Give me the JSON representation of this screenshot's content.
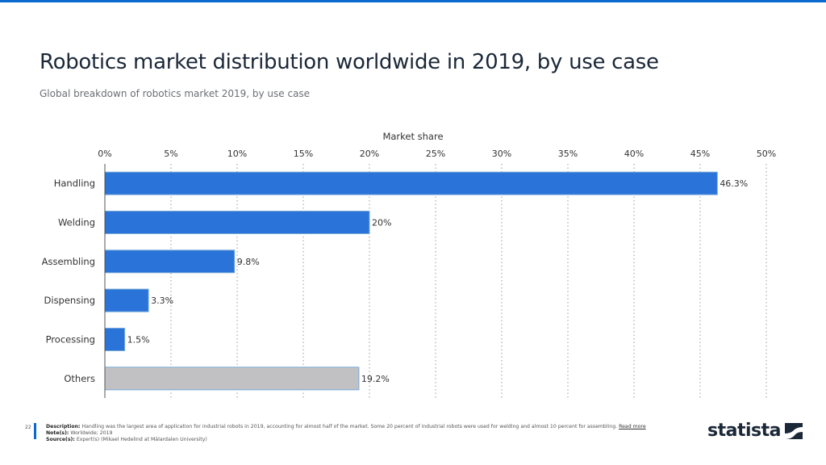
{
  "header": {
    "title": "Robotics market distribution worldwide in 2019, by use case",
    "subtitle": "Global breakdown of robotics market 2019, by use case"
  },
  "colors": {
    "accent": "#0a6ad0",
    "bar": "#2a73d9",
    "bar_other": "#c1c1c3",
    "bar_border": "#7aaad8",
    "title": "#1b2838"
  },
  "chart_data": {
    "type": "bar",
    "orientation": "horizontal",
    "title": "Robotics market distribution worldwide in 2019, by use case",
    "subtitle": "Global breakdown of robotics market 2019, by use case",
    "xlabel": "Market share",
    "ylabel": "",
    "xlim": [
      0,
      50
    ],
    "x_ticks": [
      "0%",
      "5%",
      "10%",
      "15%",
      "20%",
      "25%",
      "30%",
      "35%",
      "40%",
      "45%",
      "50%"
    ],
    "x_tick_values": [
      0,
      5,
      10,
      15,
      20,
      25,
      30,
      35,
      40,
      45,
      50
    ],
    "axis_position": "top",
    "grid": true,
    "categories": [
      "Handling",
      "Welding",
      "Assembling",
      "Dispensing",
      "Processing",
      "Others"
    ],
    "values": [
      46.3,
      20,
      9.8,
      3.3,
      1.5,
      19.2
    ],
    "data_labels": [
      "46.3%",
      "20%",
      "9.8%",
      "3.3%",
      "1.5%",
      "19.2%"
    ],
    "highlight": [
      "primary",
      "primary",
      "primary",
      "primary",
      "primary",
      "other"
    ]
  },
  "footer": {
    "page_number": "22",
    "description_label": "Description:",
    "description": "Handling was the largest area of application for industrial robots in 2019, accounting for almost half of the market. Some 20 percent of industrial robots were used for welding and almost 10 percent for assembling.",
    "read_more": "Read more",
    "notes_label": "Note(s):",
    "notes": "Worldwide; 2019",
    "sources_label": "Source(s):",
    "sources": "Expert(s) (Mikael Hedelind at Mälardalen University)",
    "logo_text": "statista",
    "logo_icon": "statista-logo-icon"
  }
}
